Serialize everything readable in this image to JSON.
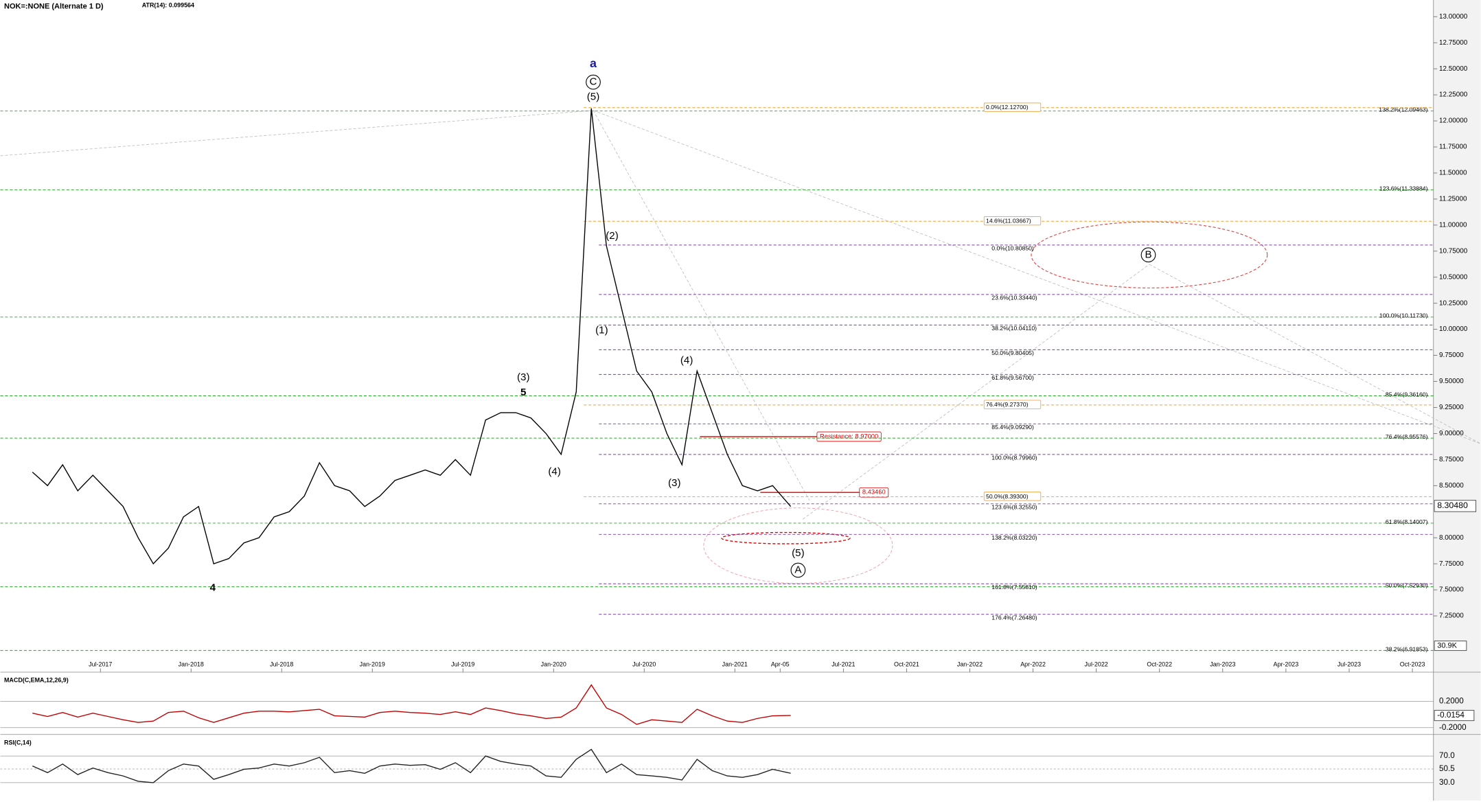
{
  "chart_data": {
    "type": "line",
    "title": "NOK=:NONE (Alternate 1 D)",
    "subtitle": "ATR(14): 0.099564",
    "x": [
      "Feb-2017",
      "Mar-2017",
      "Apr-2017",
      "May-2017",
      "Jun-2017",
      "Jul-2017",
      "Aug-2017",
      "Sep-2017",
      "Oct-2017",
      "Nov-2017",
      "Dec-2017",
      "Jan-2018",
      "Feb-2018",
      "Mar-2018",
      "Apr-2018",
      "May-2018",
      "Jun-2018",
      "Jul-2018",
      "Aug-2018",
      "Sep-2018",
      "Oct-2018",
      "Nov-2018",
      "Dec-2018",
      "Jan-2019",
      "Feb-2019",
      "Mar-2019",
      "Apr-2019",
      "May-2019",
      "Jun-2019",
      "Jul-2019",
      "Aug-2019",
      "Sep-2019",
      "Oct-2019",
      "Nov-2019",
      "Dec-2019",
      "Jan-2020",
      "Feb-2020",
      "Mar-2020",
      "Apr-2020",
      "May-2020",
      "Jun-2020",
      "Jul-2020",
      "Aug-2020",
      "Sep-2020",
      "Oct-2020",
      "Nov-2020",
      "Dec-2020",
      "Jan-2021",
      "Feb-2021",
      "Mar-2021",
      "Apr-2021"
    ],
    "xlim": [
      "Jan-2017",
      "Nov-2023"
    ],
    "xticks": [
      "Jul-2017",
      "Jan-2018",
      "Jul-2018",
      "Jan-2019",
      "Jul-2019",
      "Jan-2020",
      "Jul-2020",
      "Jan-2021",
      {
        "value": "Apr-2021",
        "label": "Apr-05"
      },
      "Jul-2021",
      "Oct-2021",
      "Jan-2022",
      "Apr-2022",
      "Jul-2022",
      "Oct-2022",
      "Jan-2023",
      "Apr-2023",
      "Jul-2023",
      "Oct-2023"
    ],
    "series": [
      {
        "color": "#000000",
        "values": [
          8.63,
          8.5,
          8.7,
          8.45,
          8.6,
          8.45,
          8.3,
          8.0,
          7.75,
          7.9,
          8.2,
          8.3,
          7.75,
          7.8,
          7.95,
          8.0,
          8.2,
          8.25,
          8.4,
          8.72,
          8.5,
          8.45,
          8.3,
          8.4,
          8.55,
          8.6,
          8.65,
          8.6,
          8.75,
          8.6,
          9.13,
          9.2,
          9.2,
          9.15,
          9.0,
          8.8,
          9.4,
          12.12,
          10.8,
          10.2,
          9.6,
          9.4,
          9.0,
          8.7,
          9.6,
          9.2,
          8.8,
          8.5,
          8.45,
          8.5,
          8.3
        ]
      }
    ],
    "ylim": [
      6.71,
      13.16
    ],
    "yticks": [
      {
        "value": 13.0,
        "label": "13.00000"
      },
      {
        "value": 12.75,
        "label": "12.75000"
      },
      {
        "value": 12.5,
        "label": "12.50000"
      },
      {
        "value": 12.25,
        "label": "12.25000"
      },
      {
        "value": 12.0,
        "label": "12.00000"
      },
      {
        "value": 11.75,
        "label": "11.75000"
      },
      {
        "value": 11.5,
        "label": "11.50000"
      },
      {
        "value": 11.25,
        "label": "11.25000"
      },
      {
        "value": 11.0,
        "label": "11.00000"
      },
      {
        "value": 10.75,
        "label": "10.75000"
      },
      {
        "value": 10.5,
        "label": "10.50000"
      },
      {
        "value": 10.25,
        "label": "10.25000"
      },
      {
        "value": 10.0,
        "label": "10.00000"
      },
      {
        "value": 9.75,
        "label": "9.75000"
      },
      {
        "value": 9.5,
        "label": "9.50000"
      },
      {
        "value": 9.25,
        "label": "9.25000"
      },
      {
        "value": 9.0,
        "label": "9.00000"
      },
      {
        "value": 8.75,
        "label": "8.75000"
      },
      {
        "value": 8.5,
        "label": "8.50000"
      },
      {
        "value": 8.0,
        "label": "8.00000"
      },
      {
        "value": 7.75,
        "label": "7.75000"
      },
      {
        "value": 7.5,
        "label": "7.50000"
      },
      {
        "value": 7.25,
        "label": "7.25000"
      }
    ],
    "last_price": {
      "value": 8.3048,
      "label": "8.30480"
    },
    "volume_label": "30.9K",
    "levels": [
      {
        "color": "#22aa22",
        "from": "Jan-2017",
        "items": [
          {
            "value": 12.09463,
            "label": "138.2%(12.09463)"
          },
          {
            "value": 11.33884,
            "label": "123.6%(11.33884)"
          },
          {
            "value": 10.1173,
            "label": "100.0%(10.11730)"
          },
          {
            "value": 9.3616,
            "label": "85.4%(9.36160)"
          },
          {
            "value": 8.95576,
            "label": "76.4%(8.95576)"
          },
          {
            "value": 8.14007,
            "label": "61.8%(8.14007)"
          },
          {
            "value": 7.5293,
            "label": "50.0%(7.52930)"
          },
          {
            "value": 6.91853,
            "label": "38.2%(6.91853)"
          }
        ]
      },
      {
        "color": "#f0a030",
        "from": "Mar-2020",
        "items": [
          {
            "value": 12.127,
            "label": "0.0%(12.12700)"
          },
          {
            "value": 11.03667,
            "label": "14.6%(11.03667)"
          },
          {
            "value": 9.2737,
            "label": "76.4%(9.27370)"
          },
          {
            "value": 8.393,
            "label": "50.0%(8.39300)"
          }
        ]
      },
      {
        "color": "#7a3fa0",
        "from": "Apr-2020",
        "items": [
          {
            "value": 10.8085,
            "label": "0.0%(10.80850)"
          },
          {
            "value": 10.3344,
            "label": "23.6%(10.33440)"
          },
          {
            "value": 10.0411,
            "label": "38.2%(10.04110)"
          },
          {
            "value": 9.80405,
            "label": "50.0%(9.80405)"
          },
          {
            "value": 9.567,
            "label": "61.8%(9.56700)"
          },
          {
            "value": 9.0929,
            "label": "85.4%(9.09290)"
          },
          {
            "value": 8.7996,
            "label": "100.0%(8.79960)"
          },
          {
            "value": 8.3255,
            "label": "123.6%(8.32550)"
          },
          {
            "value": 8.0322,
            "label": "138.2%(8.03220)"
          },
          {
            "value": 7.5581,
            "label": "161.8%(7.55810)"
          },
          {
            "value": 7.2648,
            "label": "176.4%(7.26480)"
          }
        ]
      }
    ],
    "resistances": [
      {
        "value": 8.97,
        "label": "Resistance: 8.97000",
        "from": "Nov-2020"
      },
      {
        "value": 8.4346,
        "label": "8.43460",
        "from": "Mar-2021"
      }
    ],
    "wave_labels": [
      "a",
      "C",
      "(5)",
      "(2)",
      "(1)",
      "(4)",
      "(3)",
      "(3)",
      "5",
      "(4)",
      "4",
      "(5)",
      "A",
      "B"
    ],
    "indicators": [
      {
        "title": "MACD(C,EMA,12,26,9)",
        "color": "#c00000",
        "values": [
          0.02,
          -0.03,
          0.03,
          -0.04,
          0.02,
          -0.03,
          -0.08,
          -0.12,
          -0.1,
          0.03,
          0.05,
          -0.05,
          -0.12,
          -0.05,
          0.02,
          0.05,
          0.05,
          0.04,
          0.06,
          0.08,
          -0.02,
          -0.03,
          -0.04,
          0.03,
          0.05,
          0.03,
          0.02,
          0.0,
          0.04,
          0.0,
          0.1,
          0.06,
          0.01,
          -0.02,
          -0.06,
          -0.04,
          0.1,
          0.45,
          0.1,
          0.0,
          -0.15,
          -0.08,
          -0.1,
          -0.12,
          0.08,
          -0.02,
          -0.1,
          -0.12,
          -0.06,
          -0.02,
          -0.0154
        ],
        "ylim": [
          -0.29,
          0.63
        ],
        "yticks": [
          {
            "value": 0.2,
            "label": "0.2000"
          },
          {
            "value": -0.2,
            "label": "-0.2000"
          }
        ],
        "last": {
          "value": -0.0154,
          "label": "-0.0154"
        }
      },
      {
        "title": "RSI(C,14)",
        "color": "#222222",
        "values": [
          55,
          45,
          58,
          42,
          52,
          45,
          40,
          32,
          30,
          48,
          58,
          55,
          35,
          42,
          50,
          52,
          58,
          55,
          60,
          68,
          45,
          48,
          44,
          55,
          58,
          56,
          57,
          50,
          60,
          45,
          70,
          62,
          58,
          55,
          40,
          38,
          65,
          80,
          45,
          58,
          42,
          40,
          38,
          34,
          65,
          48,
          40,
          38,
          42,
          50,
          44
        ],
        "ylim": [
          3,
          101
        ],
        "yticks": [
          {
            "value": 70,
            "label": "70.0"
          },
          {
            "value": 50.5,
            "label": "50.5"
          },
          {
            "value": 30,
            "label": "30.0"
          }
        ]
      }
    ]
  }
}
